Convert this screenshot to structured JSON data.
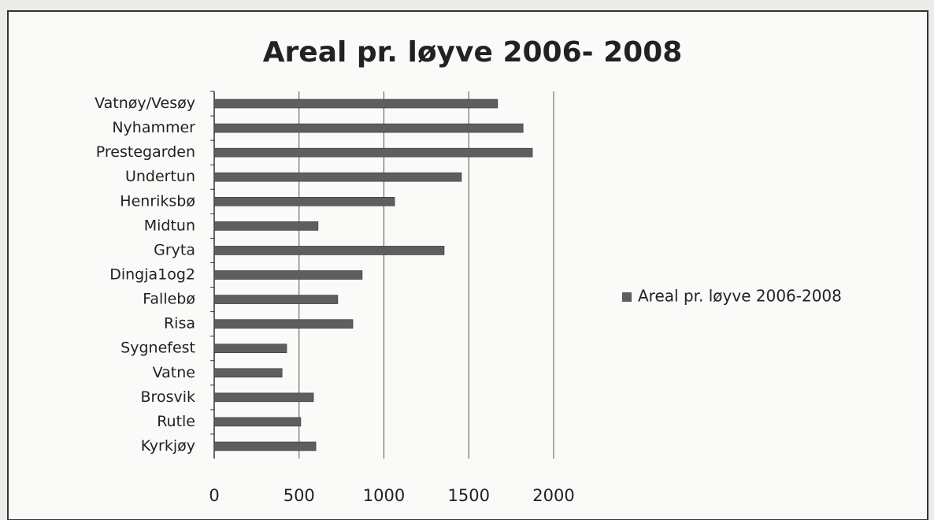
{
  "chart_data": {
    "type": "bar",
    "orientation": "horizontal",
    "title": "Areal pr. løyve 2006- 2008",
    "categories": [
      "Vatnøy/Vesøy",
      "Nyhammer",
      "Prestegarden",
      "Undertun",
      "Henriksbø",
      "Midtun",
      "Gryta",
      "Dingja1og2",
      "Fallebø",
      "Risa",
      "Sygnefest",
      "Vatne",
      "Brosvik",
      "Rutle",
      "Kyrkjøy"
    ],
    "series": [
      {
        "name": "Areal pr. løyve 2006-2008",
        "color": "#5e5e5e",
        "values": [
          1670,
          1820,
          1875,
          1457,
          1063,
          612,
          1355,
          872,
          728,
          817,
          427,
          400,
          585,
          510,
          599
        ]
      }
    ],
    "xlim": [
      0,
      2000
    ],
    "xticks": [
      0,
      500,
      1000,
      1500,
      2000
    ],
    "grid": true,
    "legend": "right"
  }
}
